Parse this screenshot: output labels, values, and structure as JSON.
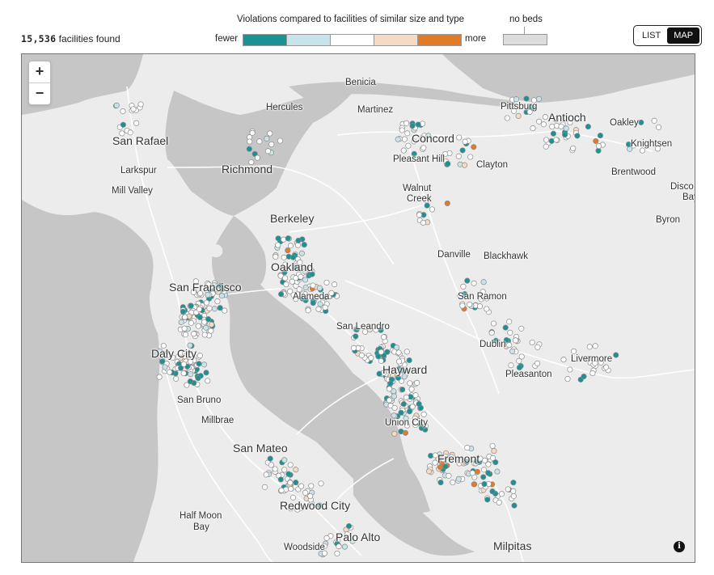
{
  "header": {
    "count_number": "15,536",
    "count_suffix": " facilities found"
  },
  "legend": {
    "title": "Violations compared to facilities of similar size and type",
    "fewer": "fewer",
    "more": "more",
    "no_beds": "no beds",
    "scale_colors": [
      "#1c9193",
      "#c8e3ea",
      "#ffffff",
      "#f6dac4",
      "#e07b28"
    ],
    "no_beds_color": "#dcdcdc"
  },
  "view_toggle": {
    "list": "LIST",
    "map": "MAP",
    "active": "MAP"
  },
  "map": {
    "zoom_in": "+",
    "zoom_out": "−",
    "info": "i",
    "water_color": "#c6c6c6",
    "land_color": "#ececec",
    "places": [
      {
        "name": "Benicia",
        "size": "med"
      },
      {
        "name": "Hercules",
        "size": "med"
      },
      {
        "name": "Martinez",
        "size": "med"
      },
      {
        "name": "Pittsburg",
        "size": "med"
      },
      {
        "name": "Antioch",
        "size": "big"
      },
      {
        "name": "Oakley",
        "size": "med"
      },
      {
        "name": "Knightsen",
        "size": "med"
      },
      {
        "name": "San Rafael",
        "size": "big"
      },
      {
        "name": "Concord",
        "size": "big"
      },
      {
        "name": "Pleasant Hill",
        "size": "med"
      },
      {
        "name": "Clayton",
        "size": "med"
      },
      {
        "name": "Larkspur",
        "size": "med"
      },
      {
        "name": "Richmond",
        "size": "big"
      },
      {
        "name": "Brentwood",
        "size": "med"
      },
      {
        "name": "Mill Valley",
        "size": "med"
      },
      {
        "name": "Walnut",
        "size": "med"
      },
      {
        "name": "Creek",
        "size": "med"
      },
      {
        "name": "Disco",
        "size": "med"
      },
      {
        "name": "Bay",
        "size": "med"
      },
      {
        "name": "Berkeley",
        "size": "big"
      },
      {
        "name": "Byron",
        "size": "med"
      },
      {
        "name": "Danville",
        "size": "med"
      },
      {
        "name": "Blackhawk",
        "size": "med"
      },
      {
        "name": "Oakland",
        "size": "big"
      },
      {
        "name": "San Francisco",
        "size": "big"
      },
      {
        "name": "San Ramon",
        "size": "med"
      },
      {
        "name": "Alameda",
        "size": "med"
      },
      {
        "name": "San Leandro",
        "size": "med"
      },
      {
        "name": "Dublin",
        "size": "med"
      },
      {
        "name": "Daly City",
        "size": "big"
      },
      {
        "name": "Livermore",
        "size": "med"
      },
      {
        "name": "Hayward",
        "size": "big"
      },
      {
        "name": "Pleasanton",
        "size": "med"
      },
      {
        "name": "San Bruno",
        "size": "med"
      },
      {
        "name": "Millbrae",
        "size": "med"
      },
      {
        "name": "Union City",
        "size": "med"
      },
      {
        "name": "San Mateo",
        "size": "big"
      },
      {
        "name": "Fremont",
        "size": "big"
      },
      {
        "name": "Redwood City",
        "size": "big"
      },
      {
        "name": "Half Moon",
        "size": "med"
      },
      {
        "name": "Bay",
        "size": "med"
      },
      {
        "name": "Palo Alto",
        "size": "big"
      },
      {
        "name": "Woodside",
        "size": "med"
      },
      {
        "name": "Milpitas",
        "size": "big"
      }
    ]
  }
}
